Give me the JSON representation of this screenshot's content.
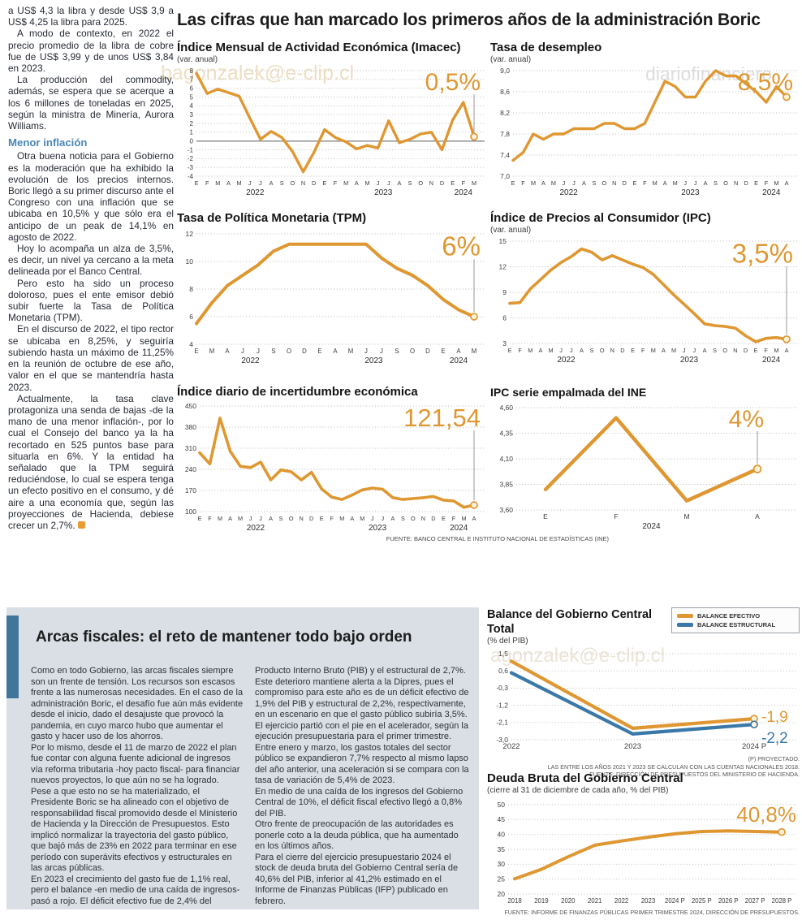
{
  "colors": {
    "orange": "#DF9731",
    "blue": "#3A78A7",
    "grid": "#b9b9b9",
    "panel": "#dadfe5",
    "accent_bar": "#41759b",
    "subhead_blue": "#4a86b8"
  },
  "watermarks": [
    "bagonzalek@e-clip.cl",
    "diariofinanciero",
    "agonzalek@e-clip.cl",
    "ero#@gonzalek@e-clip.cl"
  ],
  "main": {
    "title": "Las cifras que han marcado los primeros años de la administración Boric"
  },
  "left_article": {
    "p1": "a US$ 4,3 la libra y desde US$ 3,9 a US$ 4,25 la libra para 2025.",
    "p2": "A modo de contexto, en 2022 el precio promedio de la libra de cobre fue de US$ 3,99 y de unos US$ 3,84 en 2023.",
    "p3": "La producción del commodity, además, se espera que se acerque a los 6 millones de toneladas en 2025, según la ministra de Minería, Aurora Williams.",
    "subhead": "Menor inflación",
    "p4": "Otra buena noticia para el Gobierno es la moderación que ha exhibido la evolución de los precios internos. Boric llegó a su primer discurso ante el Congreso con una inflación que se ubicaba en 10,5% y que sólo era el anticipo de un peak de 14,1% en agosto de 2022.",
    "p5": "Hoy lo acompaña un alza de 3,5%, es decir, un nivel ya cercano a la meta delineada por el Banco Central.",
    "p6": "Pero esto ha sido un proceso doloroso, pues el ente emisor debió subir fuerte la Tasa de Política Monetaria (TPM).",
    "p7": "En el discurso de 2022, el tipo rector se ubicaba en 8,25%, y seguiría subiendo hasta un máximo de 11,25% en la reunión de octubre de ese año, valor en el que se mantendría hasta 2023.",
    "p8": "Actualmente, la tasa clave protagoniza una senda de bajas -de la mano de una menor inflación-, por lo cual el Consejo del banco ya la ha recortado en 525 puntos base para situarla en 6%. Y la entidad ha señalado que la TPM seguirá reduciéndose, lo cual se espera tenga un efecto positivo en el consumo, y dé aire a una economía que, según las proyecciones de Hacienda, debiese crecer un 2,7%."
  },
  "bottom": {
    "title": "Arcas fiscales: el reto de mantener todo bajo orden",
    "col1_p1": "Como en todo Gobierno, las arcas fiscales siempre son un frente de tensión. Los recursos son escasos frente a las numerosas necesidades. En el caso de la administración Boric, el desafío fue aún más evidente desde el inicio, dado el desajuste que provocó la pandemia, en cuyo marco hubo que aumentar el gasto y hacer uso de los ahorros.",
    "col1_p2": "Por lo mismo, desde el 11 de marzo de 2022 el plan fue contar con alguna fuente adicional de ingresos vía reforma tributaria -hoy pacto fiscal- para financiar nuevos proyectos, lo que aún no se ha logrado.",
    "col1_p3": "Pese a que esto no se ha materializado, el Presidente Boric se ha alineado con el objetivo de responsabilidad fiscal promovido desde el Ministerio de Hacienda y la Dirección de Presupuestos. Esto implicó normalizar la trayectoria del gasto público, que bajó más de 23% en 2022 para terminar en ese período con superávits efectivos y estructurales en las arcas públicas.",
    "col1_p4": "En 2023 el crecimiento del gasto fue de 1,1% real, pero el balance -en medio de una caída de ingresos- pasó a rojo. El déficit efectivo fue de 2,4% del",
    "col2_p1": "Producto Interno Bruto (PIB) y el estructural de 2,7%. Este deterioro mantiene alerta a la Dipres, pues el compromiso para este año es de un déficit efectivo de 1,9% del PIB y estructural de 2,2%, respectivamente, en un escenario en que el gasto público subiría 3,5%.",
    "col2_p2": "El ejercicio partió con el pie en el acelerador, según la ejecución presupuestaria para el primer trimestre. Entre enero y marzo, los gastos totales del sector público se expandieron 7,7% respecto al mismo lapso del año anterior, una aceleración si se compara con la tasa de variación de 5,4% de 2023.",
    "col2_p3": "En medio de una caída de los ingresos del Gobierno Central de 10%, el déficit fiscal efectivo llegó a 0,8% del PIB.",
    "col2_p4": "Otro frente de preocupación de las autoridades es ponerle coto a la deuda pública, que ha aumentado en los últimos años.",
    "col2_p5": "Para el cierre del ejercicio presupuestario 2024 el stock de deuda bruta del Gobierno Central sería de 40,6% del PIB, inferior al 41,2% estimado en el Informe de Finanzas Públicas (IFP) publicado en febrero."
  },
  "chart_data": [
    {
      "type": "line",
      "title": "Índice Mensual de Actividad Económica (Imacec)",
      "subtitle": "(var. anual)",
      "callout": {
        "text": "0,5%",
        "color": "#DF9731"
      },
      "ylim": [
        -4,
        8
      ],
      "zero_line": true,
      "yticks": [
        {
          "v": 8,
          "l": "8"
        },
        {
          "v": 7,
          "l": "7"
        },
        {
          "v": 6,
          "l": "6"
        },
        {
          "v": 5,
          "l": "5"
        },
        {
          "v": 4,
          "l": "4"
        },
        {
          "v": 3,
          "l": "3"
        },
        {
          "v": 2,
          "l": "2"
        },
        {
          "v": 1,
          "l": "1"
        },
        {
          "v": 0,
          "l": "0"
        },
        {
          "v": -1,
          "l": "-1"
        },
        {
          "v": -2,
          "l": "-2"
        },
        {
          "v": -3,
          "l": "-3"
        },
        {
          "v": -4,
          "l": "-4"
        }
      ],
      "x_labels": [
        "E",
        "F",
        "M",
        "A",
        "M",
        "J",
        "J",
        "A",
        "S",
        "O",
        "N",
        "D",
        "E",
        "F",
        "M",
        "A",
        "M",
        "J",
        "J",
        "A",
        "S",
        "O",
        "N",
        "D",
        "E",
        "F",
        "M"
      ],
      "years": [
        {
          "label": "2022",
          "from": 0,
          "to": 11
        },
        {
          "label": "2023",
          "from": 12,
          "to": 23
        },
        {
          "label": "2024",
          "from": 24,
          "to": 26
        }
      ],
      "series": [
        {
          "name": "Imacec",
          "color": "#DF9731",
          "values": [
            7.7,
            5.4,
            5.9,
            5.5,
            5.1,
            2.6,
            0.2,
            1.1,
            0.4,
            -1.2,
            -3.5,
            -1.3,
            1.3,
            0.4,
            -0.1,
            -0.9,
            -0.5,
            -0.8,
            2.3,
            -0.2,
            0.2,
            0.8,
            1.0,
            -1.0,
            2.4,
            4.4,
            0.5
          ]
        }
      ]
    },
    {
      "type": "line",
      "title": "Tasa de desempleo",
      "subtitle": "(var. anual)",
      "callout": {
        "text": "8,5%",
        "color": "#DF9731"
      },
      "ylim": [
        7.0,
        9.0
      ],
      "yticks": [
        {
          "v": 9.0,
          "l": "9,0"
        },
        {
          "v": 8.6,
          "l": "8,6"
        },
        {
          "v": 8.2,
          "l": "8,2"
        },
        {
          "v": 7.8,
          "l": "7,8"
        },
        {
          "v": 7.4,
          "l": "7,4"
        },
        {
          "v": 7.0,
          "l": "7,0"
        }
      ],
      "x_labels": [
        "E",
        "F",
        "M",
        "A",
        "M",
        "J",
        "J",
        "A",
        "S",
        "O",
        "N",
        "D",
        "E",
        "F",
        "M",
        "A",
        "M",
        "J",
        "J",
        "A",
        "S",
        "O",
        "N",
        "D",
        "E",
        "F",
        "M",
        "A"
      ],
      "years": [
        {
          "label": "2022",
          "from": 0,
          "to": 11
        },
        {
          "label": "2023",
          "from": 12,
          "to": 23
        },
        {
          "label": "2024",
          "from": 24,
          "to": 27
        }
      ],
      "series": [
        {
          "name": "Tasa de desempleo",
          "color": "#DF9731",
          "values": [
            7.3,
            7.45,
            7.8,
            7.7,
            7.8,
            7.8,
            7.9,
            7.9,
            7.9,
            8.0,
            8.0,
            7.9,
            7.9,
            8.0,
            8.4,
            8.8,
            8.7,
            8.5,
            8.5,
            8.8,
            9.0,
            8.9,
            8.9,
            8.75,
            8.6,
            8.4,
            8.7,
            8.5
          ]
        }
      ]
    },
    {
      "type": "line",
      "title": "Tasa de Política Monetaria (TPM)",
      "callout": {
        "text": "6%",
        "color": "#DF9731"
      },
      "ylim": [
        4,
        12
      ],
      "yticks": [
        {
          "v": 12,
          "l": "12"
        },
        {
          "v": 10,
          "l": "10"
        },
        {
          "v": 8,
          "l": "8"
        },
        {
          "v": 6,
          "l": "6"
        },
        {
          "v": 4,
          "l": "4"
        }
      ],
      "x_labels": [
        "E",
        "M",
        "A",
        "J",
        "J",
        "S",
        "O",
        "D",
        "E",
        "A",
        "M",
        "J",
        "J",
        "S",
        "O",
        "D",
        "E",
        "A",
        "M"
      ],
      "years": [
        {
          "label": "2022",
          "from": 0,
          "to": 7
        },
        {
          "label": "2023",
          "from": 8,
          "to": 15
        },
        {
          "label": "2024",
          "from": 16,
          "to": 18
        }
      ],
      "series": [
        {
          "name": "TPM",
          "color": "#DF9731",
          "values": [
            5.5,
            7.0,
            8.25,
            9.0,
            9.75,
            10.75,
            11.25,
            11.25,
            11.25,
            11.25,
            11.25,
            11.25,
            10.25,
            9.5,
            9.0,
            8.25,
            7.25,
            6.5,
            6.0
          ]
        }
      ]
    },
    {
      "type": "line",
      "title": "Índice de Precios al Consumidor (IPC)",
      "subtitle": "(var. anual)",
      "callout": {
        "text": "3,5%",
        "color": "#DF9731"
      },
      "ylim": [
        3,
        15
      ],
      "yticks": [
        {
          "v": 15,
          "l": "15"
        },
        {
          "v": 12,
          "l": "12"
        },
        {
          "v": 9,
          "l": "9"
        },
        {
          "v": 6,
          "l": "6"
        },
        {
          "v": 3,
          "l": "3"
        }
      ],
      "x_labels": [
        "E",
        "F",
        "M",
        "A",
        "M",
        "J",
        "J",
        "A",
        "S",
        "O",
        "N",
        "D",
        "E",
        "F",
        "M",
        "A",
        "M",
        "J",
        "J",
        "A",
        "S",
        "O",
        "N",
        "D",
        "E",
        "F",
        "M",
        "A"
      ],
      "years": [
        {
          "label": "2022",
          "from": 0,
          "to": 11
        },
        {
          "label": "2023",
          "from": 12,
          "to": 23
        },
        {
          "label": "2024",
          "from": 24,
          "to": 27
        }
      ],
      "series": [
        {
          "name": "IPC",
          "color": "#DF9731",
          "values": [
            7.7,
            7.8,
            9.4,
            10.5,
            11.6,
            12.5,
            13.2,
            14.1,
            13.7,
            12.8,
            13.3,
            12.8,
            12.3,
            11.9,
            11.1,
            9.9,
            8.7,
            7.6,
            6.5,
            5.3,
            5.1,
            5.0,
            4.8,
            3.9,
            3.2,
            3.6,
            3.7,
            3.5
          ]
        }
      ]
    },
    {
      "type": "line",
      "title": "Índice diario de incertidumbre económica",
      "callout": {
        "text": "121,54",
        "color": "#DF9731"
      },
      "ylim": [
        100,
        450
      ],
      "yticks": [
        {
          "v": 450,
          "l": "450"
        },
        {
          "v": 380,
          "l": "380"
        },
        {
          "v": 310,
          "l": "310"
        },
        {
          "v": 240,
          "l": "240"
        },
        {
          "v": 170,
          "l": "170"
        },
        {
          "v": 100,
          "l": "100"
        }
      ],
      "x_labels": [
        "E",
        "F",
        "M",
        "A",
        "M",
        "J",
        "J",
        "A",
        "S",
        "O",
        "N",
        "D",
        "E",
        "F",
        "M",
        "A",
        "M",
        "J",
        "J",
        "A",
        "S",
        "O",
        "N",
        "D",
        "E",
        "F",
        "M",
        "A"
      ],
      "years": [
        {
          "label": "2022",
          "from": 0,
          "to": 11
        },
        {
          "label": "2023",
          "from": 12,
          "to": 23
        },
        {
          "label": "2024",
          "from": 24,
          "to": 27
        }
      ],
      "source": "FUENTE: BANCO CENTRAL E INSTITUTO NACIONAL DE ESTADÍSTICAS (INE)",
      "series": [
        {
          "name": "Incertidumbre económica",
          "color": "#DF9731",
          "values": [
            295,
            258,
            410,
            300,
            250,
            246,
            264,
            205,
            238,
            232,
            205,
            230,
            175,
            148,
            140,
            155,
            172,
            178,
            174,
            146,
            140,
            143,
            146,
            150,
            138,
            135,
            114,
            121.54
          ]
        }
      ]
    },
    {
      "type": "line",
      "title": "IPC serie empalmada del INE",
      "callout": {
        "text": "4%",
        "color": "#DF9731"
      },
      "ylim": [
        3.6,
        4.6
      ],
      "yticks": [
        {
          "v": 4.6,
          "l": "4,60"
        },
        {
          "v": 4.35,
          "l": "4,35"
        },
        {
          "v": 4.1,
          "l": "4,10"
        },
        {
          "v": 3.85,
          "l": "3,85"
        },
        {
          "v": 3.6,
          "l": "3,60"
        }
      ],
      "x_labels": [
        "E",
        "F",
        "M",
        "A"
      ],
      "years": [
        {
          "label": "2024",
          "from": 0,
          "to": 3
        }
      ],
      "series": [
        {
          "name": "IPC empalmado",
          "color": "#DF9731",
          "values": [
            3.8,
            4.5,
            3.69,
            4.0
          ]
        }
      ]
    },
    {
      "type": "line",
      "title": "Balance del Gobierno Central Total",
      "subtitle": "(% del PIB)",
      "ylim": [
        -3.0,
        1.5
      ],
      "yticks": [
        {
          "v": 1.5,
          "l": "1,5"
        },
        {
          "v": 0.6,
          "l": "0,6"
        },
        {
          "v": -0.3,
          "l": "-0,3"
        },
        {
          "v": -1.2,
          "l": "-1,2"
        },
        {
          "v": -2.1,
          "l": "-2,1"
        },
        {
          "v": -3.0,
          "l": "-3,0"
        }
      ],
      "x_labels": [
        "2022",
        "2023",
        "2024 P"
      ],
      "end_labels": [
        {
          "text": "-1,9"
        },
        {
          "text": "-2,2"
        }
      ],
      "notes": [
        "(P) PROYECTADO.",
        "LAS ENTRE LOS AÑOS 2021 Y 2023 SE CALCULAN CON LAS CUENTAS NACIONALES 2018.",
        "FUENTE: DIRECCIÓN DE PRESUPUESTOS DEL MINISTERIO DE HACIENDA."
      ],
      "series": [
        {
          "name": "BALANCE EFECTIVO",
          "color": "#DF9731",
          "values": [
            1.1,
            -2.4,
            -1.9
          ]
        },
        {
          "name": "BALANCE ESTRUCTURAL",
          "color": "#3A78A7",
          "values": [
            0.5,
            -2.7,
            -2.2
          ]
        }
      ]
    },
    {
      "type": "line",
      "title": "Deuda Bruta del Gobierno Central",
      "subtitle": "(cierre al 31 de diciembre de cada año, % del PIB)",
      "callout": {
        "text": "40,8%",
        "color": "#DF9731"
      },
      "ylim": [
        20,
        50
      ],
      "yticks": [
        {
          "v": 50,
          "l": "50"
        },
        {
          "v": 45,
          "l": "45"
        },
        {
          "v": 40,
          "l": "40"
        },
        {
          "v": 35,
          "l": "35"
        },
        {
          "v": 30,
          "l": "30"
        },
        {
          "v": 25,
          "l": "25"
        },
        {
          "v": 20,
          "l": "20"
        }
      ],
      "x_labels": [
        "2018",
        "2019",
        "2020",
        "2021",
        "2022",
        "2023",
        "2024 P",
        "2025 P",
        "2026 P",
        "2027 P",
        "2028 P"
      ],
      "source": "FUENTE: INFORME DE FINANZAS PÚBLICAS PRIMER TRIMESTRE 2024, DIRECCIÓN DE PRESUPUESTOS.",
      "series": [
        {
          "name": "Deuda bruta",
          "color": "#DF9731",
          "values": [
            25.1,
            28.3,
            32.5,
            36.4,
            37.8,
            39.1,
            40.2,
            41.0,
            41.2,
            41.0,
            40.8
          ]
        }
      ]
    }
  ]
}
